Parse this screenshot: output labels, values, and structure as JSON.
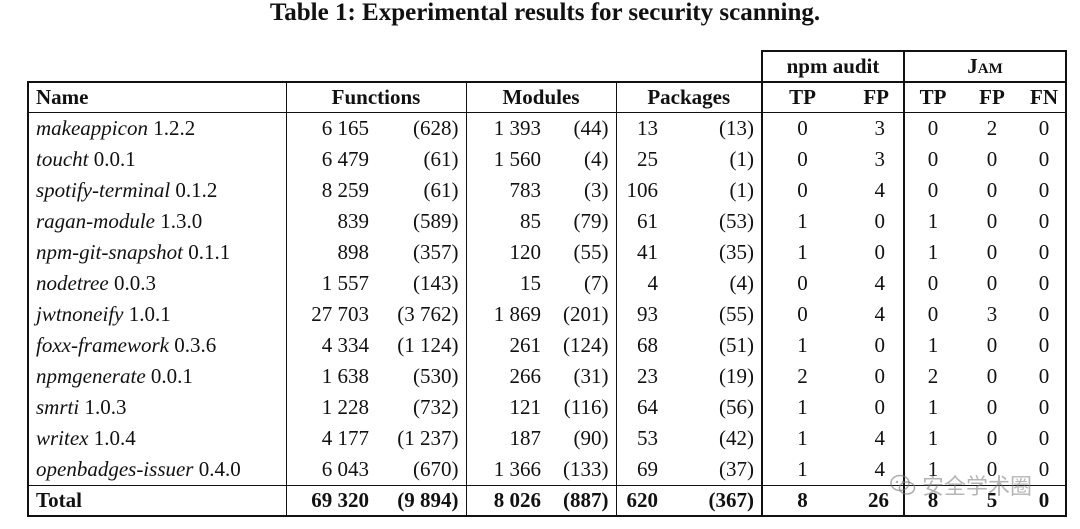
{
  "title": "Table 1: Experimental results for security scanning.",
  "groups": {
    "npm_audit": "npm audit",
    "jam": "Jam"
  },
  "headers": {
    "name": "Name",
    "functions": "Functions",
    "modules": "Modules",
    "packages": "Packages",
    "tp": "TP",
    "fp": "FP",
    "fn": "FN"
  },
  "rows": [
    {
      "name": "makeappicon",
      "version": "1.2.2",
      "functions": "6 165",
      "functions_paren": "(628)",
      "modules": "1 393",
      "modules_paren": "(44)",
      "packages": "13",
      "packages_paren": "(13)",
      "npm_tp": "0",
      "npm_fp": "3",
      "jam_tp": "0",
      "jam_fp": "2",
      "jam_fn": "0"
    },
    {
      "name": "toucht",
      "version": "0.0.1",
      "functions": "6 479",
      "functions_paren": "(61)",
      "modules": "1 560",
      "modules_paren": "(4)",
      "packages": "25",
      "packages_paren": "(1)",
      "npm_tp": "0",
      "npm_fp": "3",
      "jam_tp": "0",
      "jam_fp": "0",
      "jam_fn": "0"
    },
    {
      "name": "spotify-terminal",
      "version": "0.1.2",
      "functions": "8 259",
      "functions_paren": "(61)",
      "modules": "783",
      "modules_paren": "(3)",
      "packages": "106",
      "packages_paren": "(1)",
      "npm_tp": "0",
      "npm_fp": "4",
      "jam_tp": "0",
      "jam_fp": "0",
      "jam_fn": "0"
    },
    {
      "name": "ragan-module",
      "version": "1.3.0",
      "functions": "839",
      "functions_paren": "(589)",
      "modules": "85",
      "modules_paren": "(79)",
      "packages": "61",
      "packages_paren": "(53)",
      "npm_tp": "1",
      "npm_fp": "0",
      "jam_tp": "1",
      "jam_fp": "0",
      "jam_fn": "0"
    },
    {
      "name": "npm-git-snapshot",
      "version": "0.1.1",
      "functions": "898",
      "functions_paren": "(357)",
      "modules": "120",
      "modules_paren": "(55)",
      "packages": "41",
      "packages_paren": "(35)",
      "npm_tp": "1",
      "npm_fp": "0",
      "jam_tp": "1",
      "jam_fp": "0",
      "jam_fn": "0"
    },
    {
      "name": "nodetree",
      "version": "0.0.3",
      "functions": "1 557",
      "functions_paren": "(143)",
      "modules": "15",
      "modules_paren": "(7)",
      "packages": "4",
      "packages_paren": "(4)",
      "npm_tp": "0",
      "npm_fp": "4",
      "jam_tp": "0",
      "jam_fp": "0",
      "jam_fn": "0"
    },
    {
      "name": "jwtnoneify",
      "version": "1.0.1",
      "functions": "27 703",
      "functions_paren": "(3 762)",
      "modules": "1 869",
      "modules_paren": "(201)",
      "packages": "93",
      "packages_paren": "(55)",
      "npm_tp": "0",
      "npm_fp": "4",
      "jam_tp": "0",
      "jam_fp": "3",
      "jam_fn": "0"
    },
    {
      "name": "foxx-framework",
      "version": "0.3.6",
      "functions": "4 334",
      "functions_paren": "(1 124)",
      "modules": "261",
      "modules_paren": "(124)",
      "packages": "68",
      "packages_paren": "(51)",
      "npm_tp": "1",
      "npm_fp": "0",
      "jam_tp": "1",
      "jam_fp": "0",
      "jam_fn": "0"
    },
    {
      "name": "npmgenerate",
      "version": "0.0.1",
      "functions": "1 638",
      "functions_paren": "(530)",
      "modules": "266",
      "modules_paren": "(31)",
      "packages": "23",
      "packages_paren": "(19)",
      "npm_tp": "2",
      "npm_fp": "0",
      "jam_tp": "2",
      "jam_fp": "0",
      "jam_fn": "0"
    },
    {
      "name": "smrti",
      "version": "1.0.3",
      "functions": "1 228",
      "functions_paren": "(732)",
      "modules": "121",
      "modules_paren": "(116)",
      "packages": "64",
      "packages_paren": "(56)",
      "npm_tp": "1",
      "npm_fp": "0",
      "jam_tp": "1",
      "jam_fp": "0",
      "jam_fn": "0"
    },
    {
      "name": "writex",
      "version": "1.0.4",
      "functions": "4 177",
      "functions_paren": "(1 237)",
      "modules": "187",
      "modules_paren": "(90)",
      "packages": "53",
      "packages_paren": "(42)",
      "npm_tp": "1",
      "npm_fp": "4",
      "jam_tp": "1",
      "jam_fp": "0",
      "jam_fn": "0"
    },
    {
      "name": "openbadges-issuer",
      "version": "0.4.0",
      "functions": "6 043",
      "functions_paren": "(670)",
      "modules": "1 366",
      "modules_paren": "(133)",
      "packages": "69",
      "packages_paren": "(37)",
      "npm_tp": "1",
      "npm_fp": "4",
      "jam_tp": "1",
      "jam_fp": "0",
      "jam_fn": "0"
    }
  ],
  "total": {
    "label": "Total",
    "functions": "69 320",
    "functions_paren": "(9 894)",
    "modules": "8 026",
    "modules_paren": "(887)",
    "packages": "620",
    "packages_paren": "(367)",
    "npm_tp": "8",
    "npm_fp": "26",
    "jam_tp": "8",
    "jam_fp": "5",
    "jam_fn": "0"
  },
  "watermark": "安全学术圈"
}
